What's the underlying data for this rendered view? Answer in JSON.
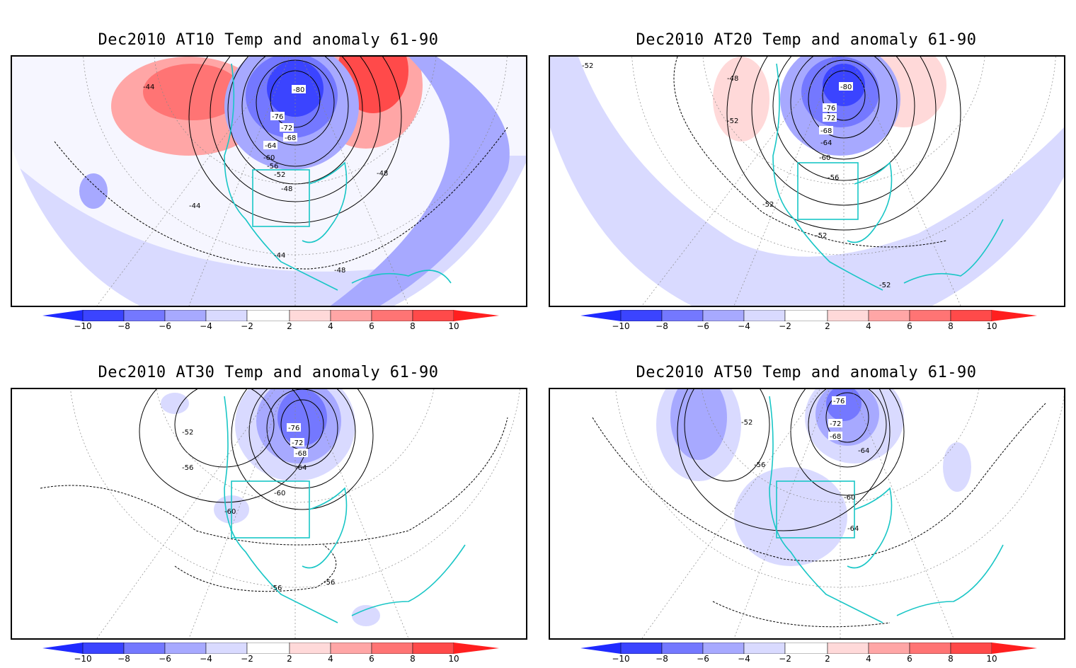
{
  "panels": [
    {
      "title": "Dec2010 AT10 Temp and anomaly 61-90",
      "contour_labels": [
        "-44",
        "-80",
        "-76",
        "-72",
        "-68",
        "-64",
        "-60",
        "-56",
        "-52",
        "-48",
        "-44",
        "-44",
        "-48",
        "-48"
      ]
    },
    {
      "title": "Dec2010 AT20 Temp and anomaly 61-90",
      "contour_labels": [
        "-52",
        "-48",
        "-52",
        "-80",
        "-76",
        "-72",
        "-68",
        "-64",
        "-60",
        "-56",
        "-52",
        "-52",
        "-52"
      ]
    },
    {
      "title": "Dec2010 AT30 Temp and anomaly 61-90",
      "contour_labels": [
        "-52",
        "-56",
        "-76",
        "-72",
        "-68",
        "-64",
        "-60",
        "-60",
        "-56",
        "-56"
      ]
    },
    {
      "title": "Dec2010 AT50 Temp and anomaly 61-90",
      "contour_labels": [
        "-52",
        "-76",
        "-72",
        "-68",
        "-64",
        "-56",
        "-60",
        "-64"
      ]
    }
  ],
  "colorbar": {
    "labels": [
      "−10",
      "−8",
      "−6",
      "−4",
      "−2",
      "2",
      "4",
      "6",
      "8",
      "10"
    ],
    "colors": [
      "#1f2aff",
      "#3b44ff",
      "#7478ff",
      "#a7a9ff",
      "#d9daff",
      "#ffffff",
      "#ffd9d9",
      "#ffa6a6",
      "#ff7474",
      "#ff4a4a",
      "#ff1f1f"
    ]
  }
}
